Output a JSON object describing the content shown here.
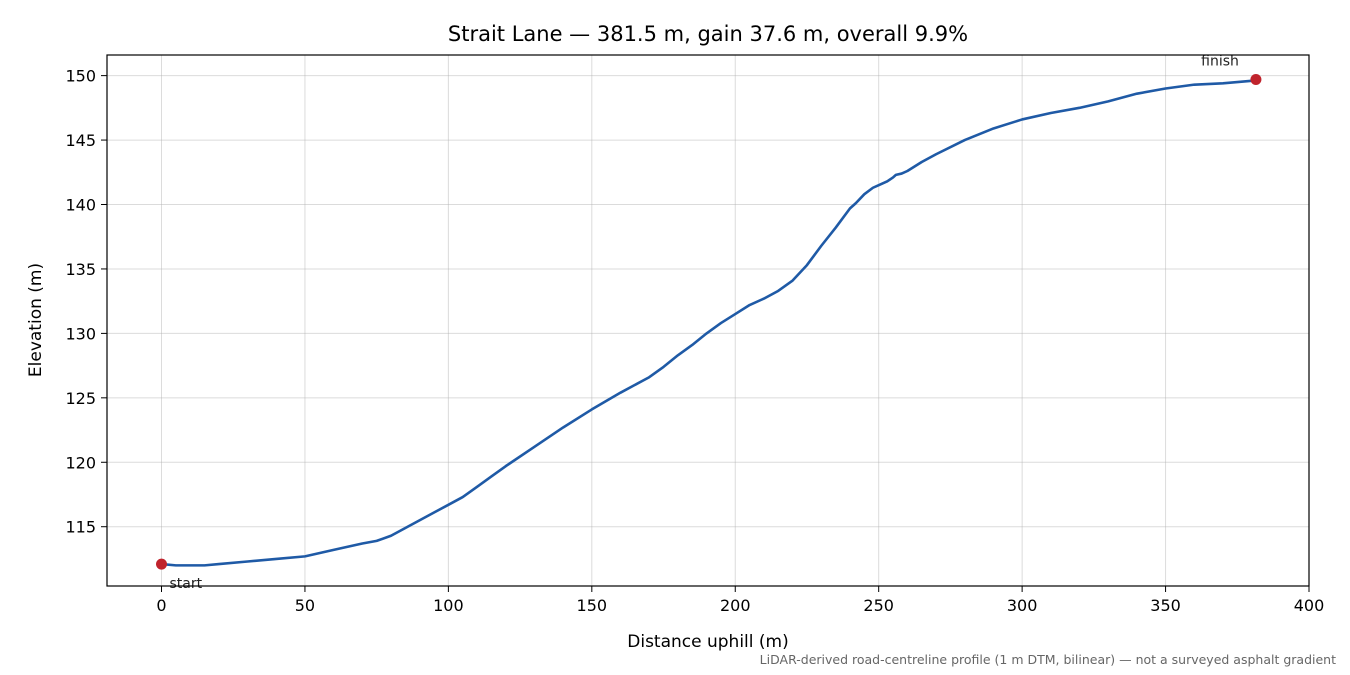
{
  "chart_data": {
    "type": "line",
    "title": "Strait Lane — 381.5 m, gain 37.6 m, overall 9.9%",
    "xlabel": "Distance uphill (m)",
    "ylabel": "Elevation (m)",
    "xlim": [
      -19,
      400
    ],
    "ylim": [
      110.4,
      151.6
    ],
    "xticks": [
      0,
      50,
      100,
      150,
      200,
      250,
      300,
      350,
      400
    ],
    "yticks": [
      115,
      120,
      125,
      130,
      135,
      140,
      145,
      150
    ],
    "grid": true,
    "series": [
      {
        "color": "#1f5aa6",
        "x": [
          0,
          5,
          10,
          15,
          20,
          30,
          40,
          50,
          60,
          70,
          75,
          80,
          85,
          90,
          95,
          100,
          105,
          110,
          115,
          120,
          130,
          140,
          150,
          160,
          170,
          175,
          180,
          185,
          190,
          195,
          200,
          205,
          210,
          215,
          220,
          225,
          230,
          235,
          240,
          242,
          245,
          248,
          250,
          253,
          255,
          256,
          258,
          260,
          265,
          270,
          280,
          290,
          300,
          310,
          320,
          330,
          340,
          350,
          360,
          370,
          375,
          380,
          381.5
        ],
        "y": [
          112.1,
          112.0,
          112.0,
          112.0,
          112.1,
          112.3,
          112.5,
          112.7,
          113.2,
          113.7,
          113.9,
          114.3,
          114.9,
          115.5,
          116.1,
          116.7,
          117.3,
          118.1,
          118.9,
          119.7,
          121.2,
          122.7,
          124.1,
          125.4,
          126.6,
          127.4,
          128.3,
          129.1,
          130.0,
          130.8,
          131.5,
          132.2,
          132.7,
          133.3,
          134.1,
          135.3,
          136.8,
          138.2,
          139.7,
          140.1,
          140.8,
          141.3,
          141.5,
          141.8,
          142.1,
          142.3,
          142.4,
          142.6,
          143.3,
          143.9,
          145.0,
          145.9,
          146.6,
          147.1,
          147.5,
          148.0,
          148.6,
          149.0,
          149.3,
          149.4,
          149.5,
          149.6,
          149.7
        ]
      }
    ],
    "markers": [
      {
        "label": "start",
        "x": 0,
        "y": 112.1,
        "color": "#c0232c"
      },
      {
        "label": "finish",
        "x": 381.5,
        "y": 149.7,
        "color": "#c0232c"
      }
    ],
    "footnote": "LiDAR-derived road-centreline profile (1 m DTM, bilinear) — not a surveyed asphalt gradient"
  }
}
